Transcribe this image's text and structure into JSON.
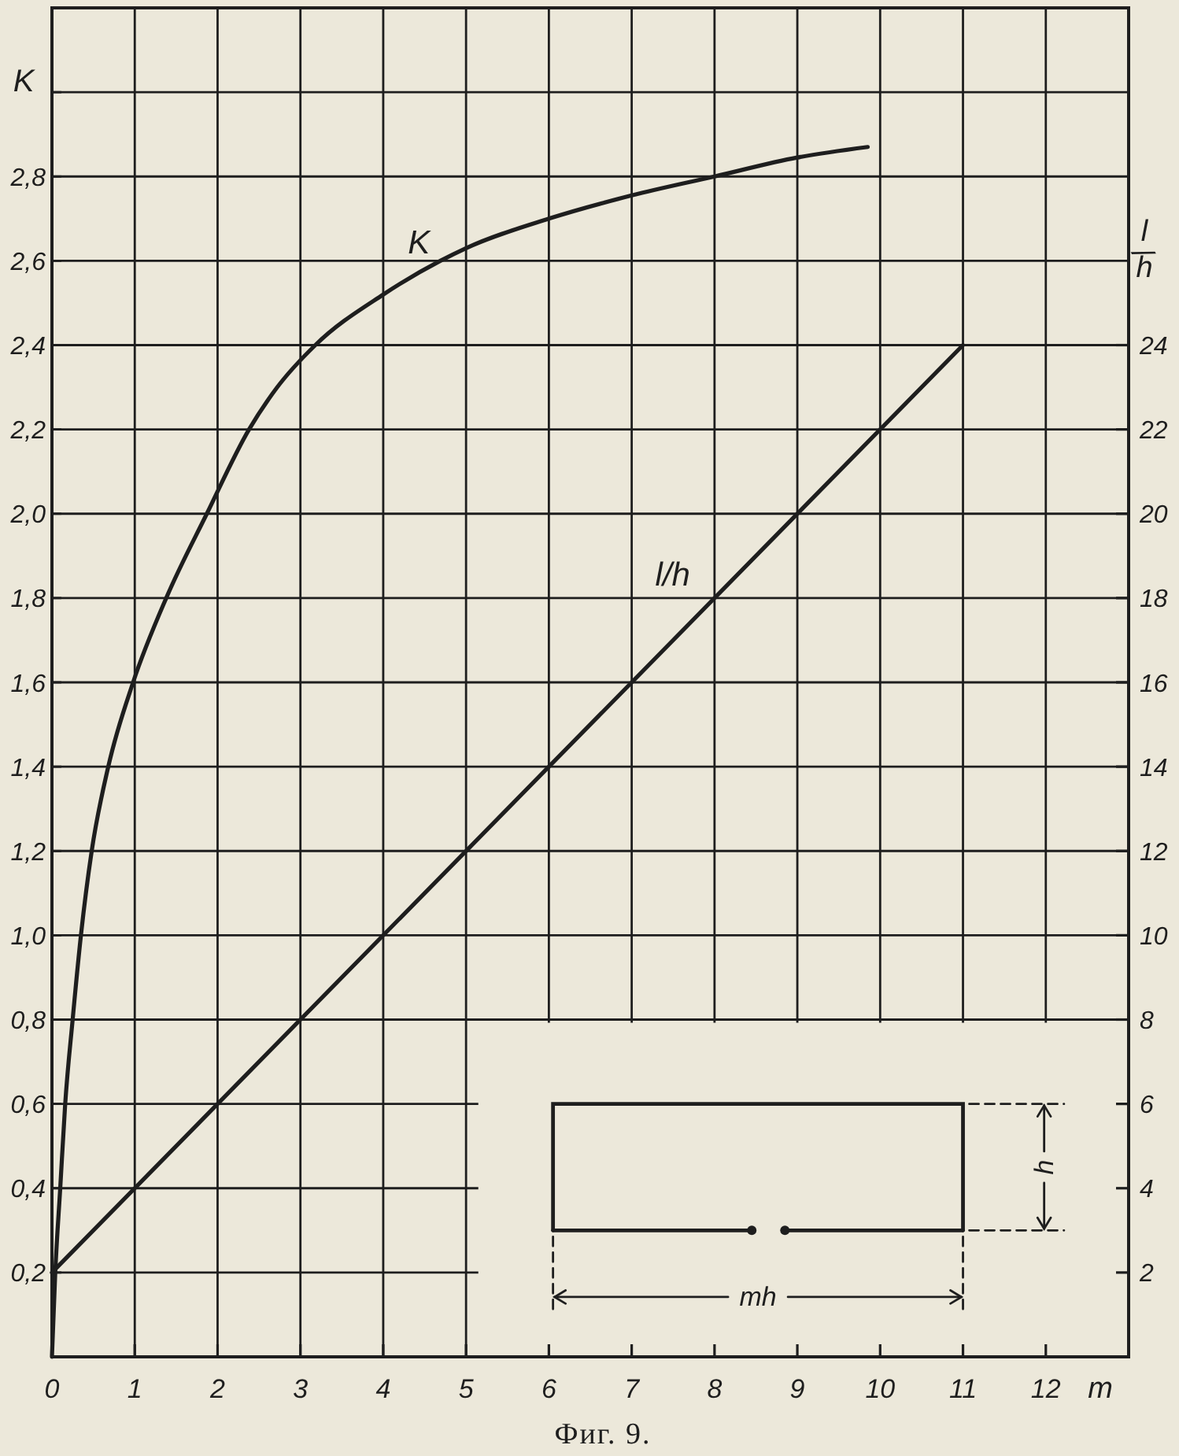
{
  "chart_data": {
    "type": "line",
    "xlabel": "m",
    "ylabel": "K",
    "y2label": "l/h",
    "xlim": [
      0,
      13
    ],
    "xticks": [
      0,
      1,
      2,
      3,
      4,
      5,
      6,
      7,
      8,
      9,
      10,
      11,
      12
    ],
    "ylim": [
      0,
      3.2
    ],
    "yticks": [
      {
        "value": 0.2,
        "label": "0,2"
      },
      {
        "value": 0.4,
        "label": "0,4"
      },
      {
        "value": 0.6,
        "label": "0,6"
      },
      {
        "value": 0.8,
        "label": "0,8"
      },
      {
        "value": 1.0,
        "label": "1,0"
      },
      {
        "value": 1.2,
        "label": "1,2"
      },
      {
        "value": 1.4,
        "label": "1,4"
      },
      {
        "value": 1.6,
        "label": "1,6"
      },
      {
        "value": 1.8,
        "label": "1,8"
      },
      {
        "value": 2.0,
        "label": "2,0"
      },
      {
        "value": 2.2,
        "label": "2,2"
      },
      {
        "value": 2.4,
        "label": "2,4"
      },
      {
        "value": 2.6,
        "label": "2,6"
      },
      {
        "value": 2.8,
        "label": "2,8"
      },
      {
        "value": 3.0,
        "label": null
      }
    ],
    "y2lim": [
      0,
      32
    ],
    "y2ticks": [
      2,
      4,
      6,
      8,
      10,
      12,
      14,
      16,
      18,
      20,
      22,
      24
    ],
    "grid": true,
    "series": [
      {
        "name": "K",
        "color": "#1e1e1e",
        "x": [
          0,
          0.04,
          0.1,
          0.16,
          0.25,
          0.35,
          0.48,
          0.68,
          0.98,
          1.38,
          1.87,
          2.38,
          2.72,
          3.18,
          4.0,
          4.69,
          5.0,
          6.0,
          7.0,
          8.0,
          9.0,
          9.85
        ],
        "values": [
          0,
          0.2,
          0.4,
          0.6,
          0.8,
          1.0,
          1.2,
          1.4,
          1.6,
          1.8,
          2.0,
          2.2,
          2.3,
          2.4,
          2.52,
          2.6,
          2.63,
          2.7,
          2.755,
          2.8,
          2.845,
          2.87
        ]
      },
      {
        "name": "l/h",
        "color": "#1e1e1e",
        "axis": "y2",
        "x": [
          0,
          11
        ],
        "values": [
          2,
          24
        ]
      }
    ],
    "annotations": [
      "h",
      "mh",
      "Фиг. 9."
    ]
  }
}
